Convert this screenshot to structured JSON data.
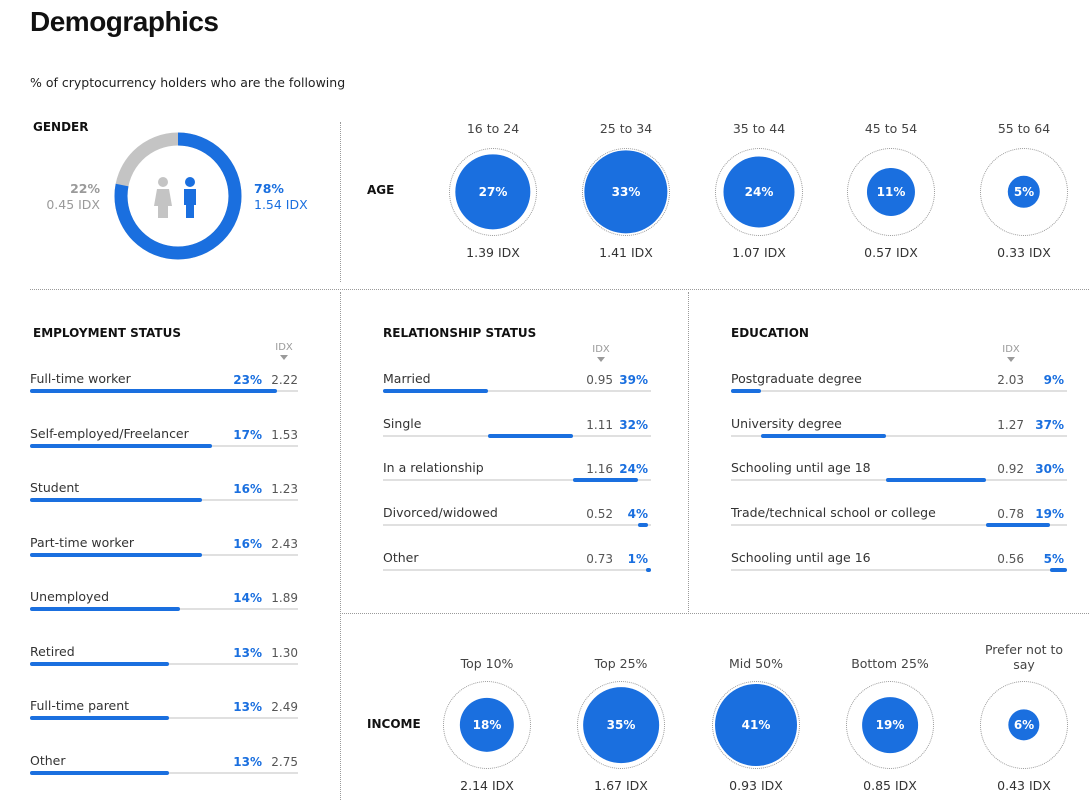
{
  "title": "Demographics",
  "subtitle": "% of cryptocurrency holders who are the following",
  "colors": {
    "accent": "#1a6fdf",
    "muted": "#c4c4c4"
  },
  "chart_data": [
    {
      "type": "pie",
      "title": "GENDER",
      "categories": [
        "Female",
        "Male"
      ],
      "values": [
        22,
        78
      ],
      "idx": [
        0.45,
        1.54
      ],
      "labels": {
        "female_pct": "22%",
        "female_idx": "0.45 IDX",
        "male_pct": "78%",
        "male_idx": "1.54 IDX"
      }
    },
    {
      "type": "scatter",
      "title": "AGE",
      "items": [
        {
          "label": "16 to 24",
          "value": 27,
          "pct": "27%",
          "idx": "1.39 IDX"
        },
        {
          "label": "25 to 34",
          "value": 33,
          "pct": "33%",
          "idx": "1.41 IDX"
        },
        {
          "label": "35 to 44",
          "value": 24,
          "pct": "24%",
          "idx": "1.07 IDX"
        },
        {
          "label": "45 to 54",
          "value": 11,
          "pct": "11%",
          "idx": "0.57 IDX"
        },
        {
          "label": "55 to 64",
          "value": 5,
          "pct": "5%",
          "idx": "0.33 IDX"
        }
      ]
    },
    {
      "type": "bar",
      "title": "EMPLOYMENT STATUS",
      "idx_header": "IDX",
      "items": [
        {
          "label": "Full-time worker",
          "value": 23,
          "pct": "23%",
          "idx": "2.22"
        },
        {
          "label": "Self-employed/Freelancer",
          "value": 17,
          "pct": "17%",
          "idx": "1.53"
        },
        {
          "label": "Student",
          "value": 16,
          "pct": "16%",
          "idx": "1.23"
        },
        {
          "label": "Part-time worker",
          "value": 16,
          "pct": "16%",
          "idx": "2.43"
        },
        {
          "label": "Unemployed",
          "value": 14,
          "pct": "14%",
          "idx": "1.89"
        },
        {
          "label": "Retired",
          "value": 13,
          "pct": "13%",
          "idx": "1.30"
        },
        {
          "label": "Full-time parent",
          "value": 13,
          "pct": "13%",
          "idx": "2.49"
        },
        {
          "label": "Other",
          "value": 13,
          "pct": "13%",
          "idx": "2.75"
        }
      ]
    },
    {
      "type": "bar",
      "title": "RELATIONSHIP STATUS",
      "idx_header": "IDX",
      "items": [
        {
          "label": "Married",
          "value": 39,
          "pct": "39%",
          "idx": "0.95"
        },
        {
          "label": "Single",
          "value": 32,
          "pct": "32%",
          "idx": "1.11"
        },
        {
          "label": "In a relationship",
          "value": 24,
          "pct": "24%",
          "idx": "1.16"
        },
        {
          "label": "Divorced/widowed",
          "value": 4,
          "pct": "4%",
          "idx": "0.52"
        },
        {
          "label": "Other",
          "value": 1,
          "pct": "1%",
          "idx": "0.73"
        }
      ]
    },
    {
      "type": "bar",
      "title": "EDUCATION",
      "idx_header": "IDX",
      "items": [
        {
          "label": "Postgraduate degree",
          "value": 9,
          "pct": "9%",
          "idx": "2.03"
        },
        {
          "label": "University degree",
          "value": 37,
          "pct": "37%",
          "idx": "1.27"
        },
        {
          "label": "Schooling until age 18",
          "value": 30,
          "pct": "30%",
          "idx": "0.92"
        },
        {
          "label": "Trade/technical school or college",
          "value": 19,
          "pct": "19%",
          "idx": "0.78"
        },
        {
          "label": "Schooling until age 16",
          "value": 5,
          "pct": "5%",
          "idx": "0.56"
        }
      ]
    },
    {
      "type": "scatter",
      "title": "INCOME",
      "items": [
        {
          "label": "Top 10%",
          "value": 18,
          "pct": "18%",
          "idx": "2.14 IDX"
        },
        {
          "label": "Top 25%",
          "value": 35,
          "pct": "35%",
          "idx": "1.67 IDX"
        },
        {
          "label": "Mid 50%",
          "value": 41,
          "pct": "41%",
          "idx": "0.93 IDX"
        },
        {
          "label": "Bottom 25%",
          "value": 19,
          "pct": "19%",
          "idx": "0.85 IDX"
        },
        {
          "label": "Prefer not to say",
          "value": 6,
          "pct": "6%",
          "idx": "0.43 IDX"
        }
      ]
    }
  ]
}
